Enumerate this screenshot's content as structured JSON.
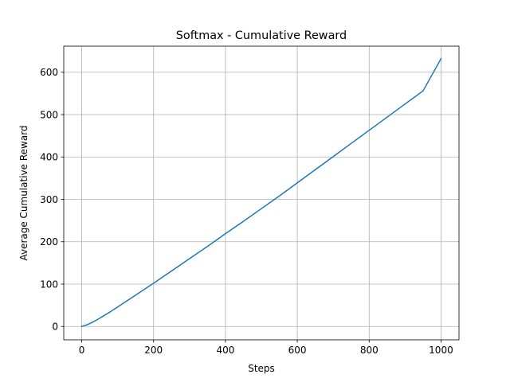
{
  "chart_data": {
    "type": "line",
    "title": "Softmax - Cumulative Reward",
    "xlabel": "Steps",
    "ylabel": "Average Cumulative Reward",
    "xlim": [
      -50,
      1050
    ],
    "ylim": [
      -31.5,
      661.5
    ],
    "xticks": [
      0,
      200,
      400,
      600,
      800,
      1000
    ],
    "yticks": [
      0,
      100,
      200,
      300,
      400,
      500,
      600
    ],
    "grid": true,
    "series": [
      {
        "color": "#1f77b4",
        "x": [
          0,
          10,
          20,
          30,
          40,
          50,
          60,
          80,
          100,
          150,
          200,
          250,
          300,
          350,
          400,
          450,
          500,
          550,
          600,
          650,
          700,
          750,
          800,
          850,
          900,
          950,
          1000
        ],
        "y": [
          0,
          2.5,
          6,
          10,
          14.5,
          19.5,
          24.5,
          35,
          46,
          74,
          102,
          131,
          160,
          189,
          219,
          248,
          278,
          308,
          339,
          370,
          401,
          432,
          463,
          494,
          525,
          556,
          632
        ]
      }
    ]
  }
}
